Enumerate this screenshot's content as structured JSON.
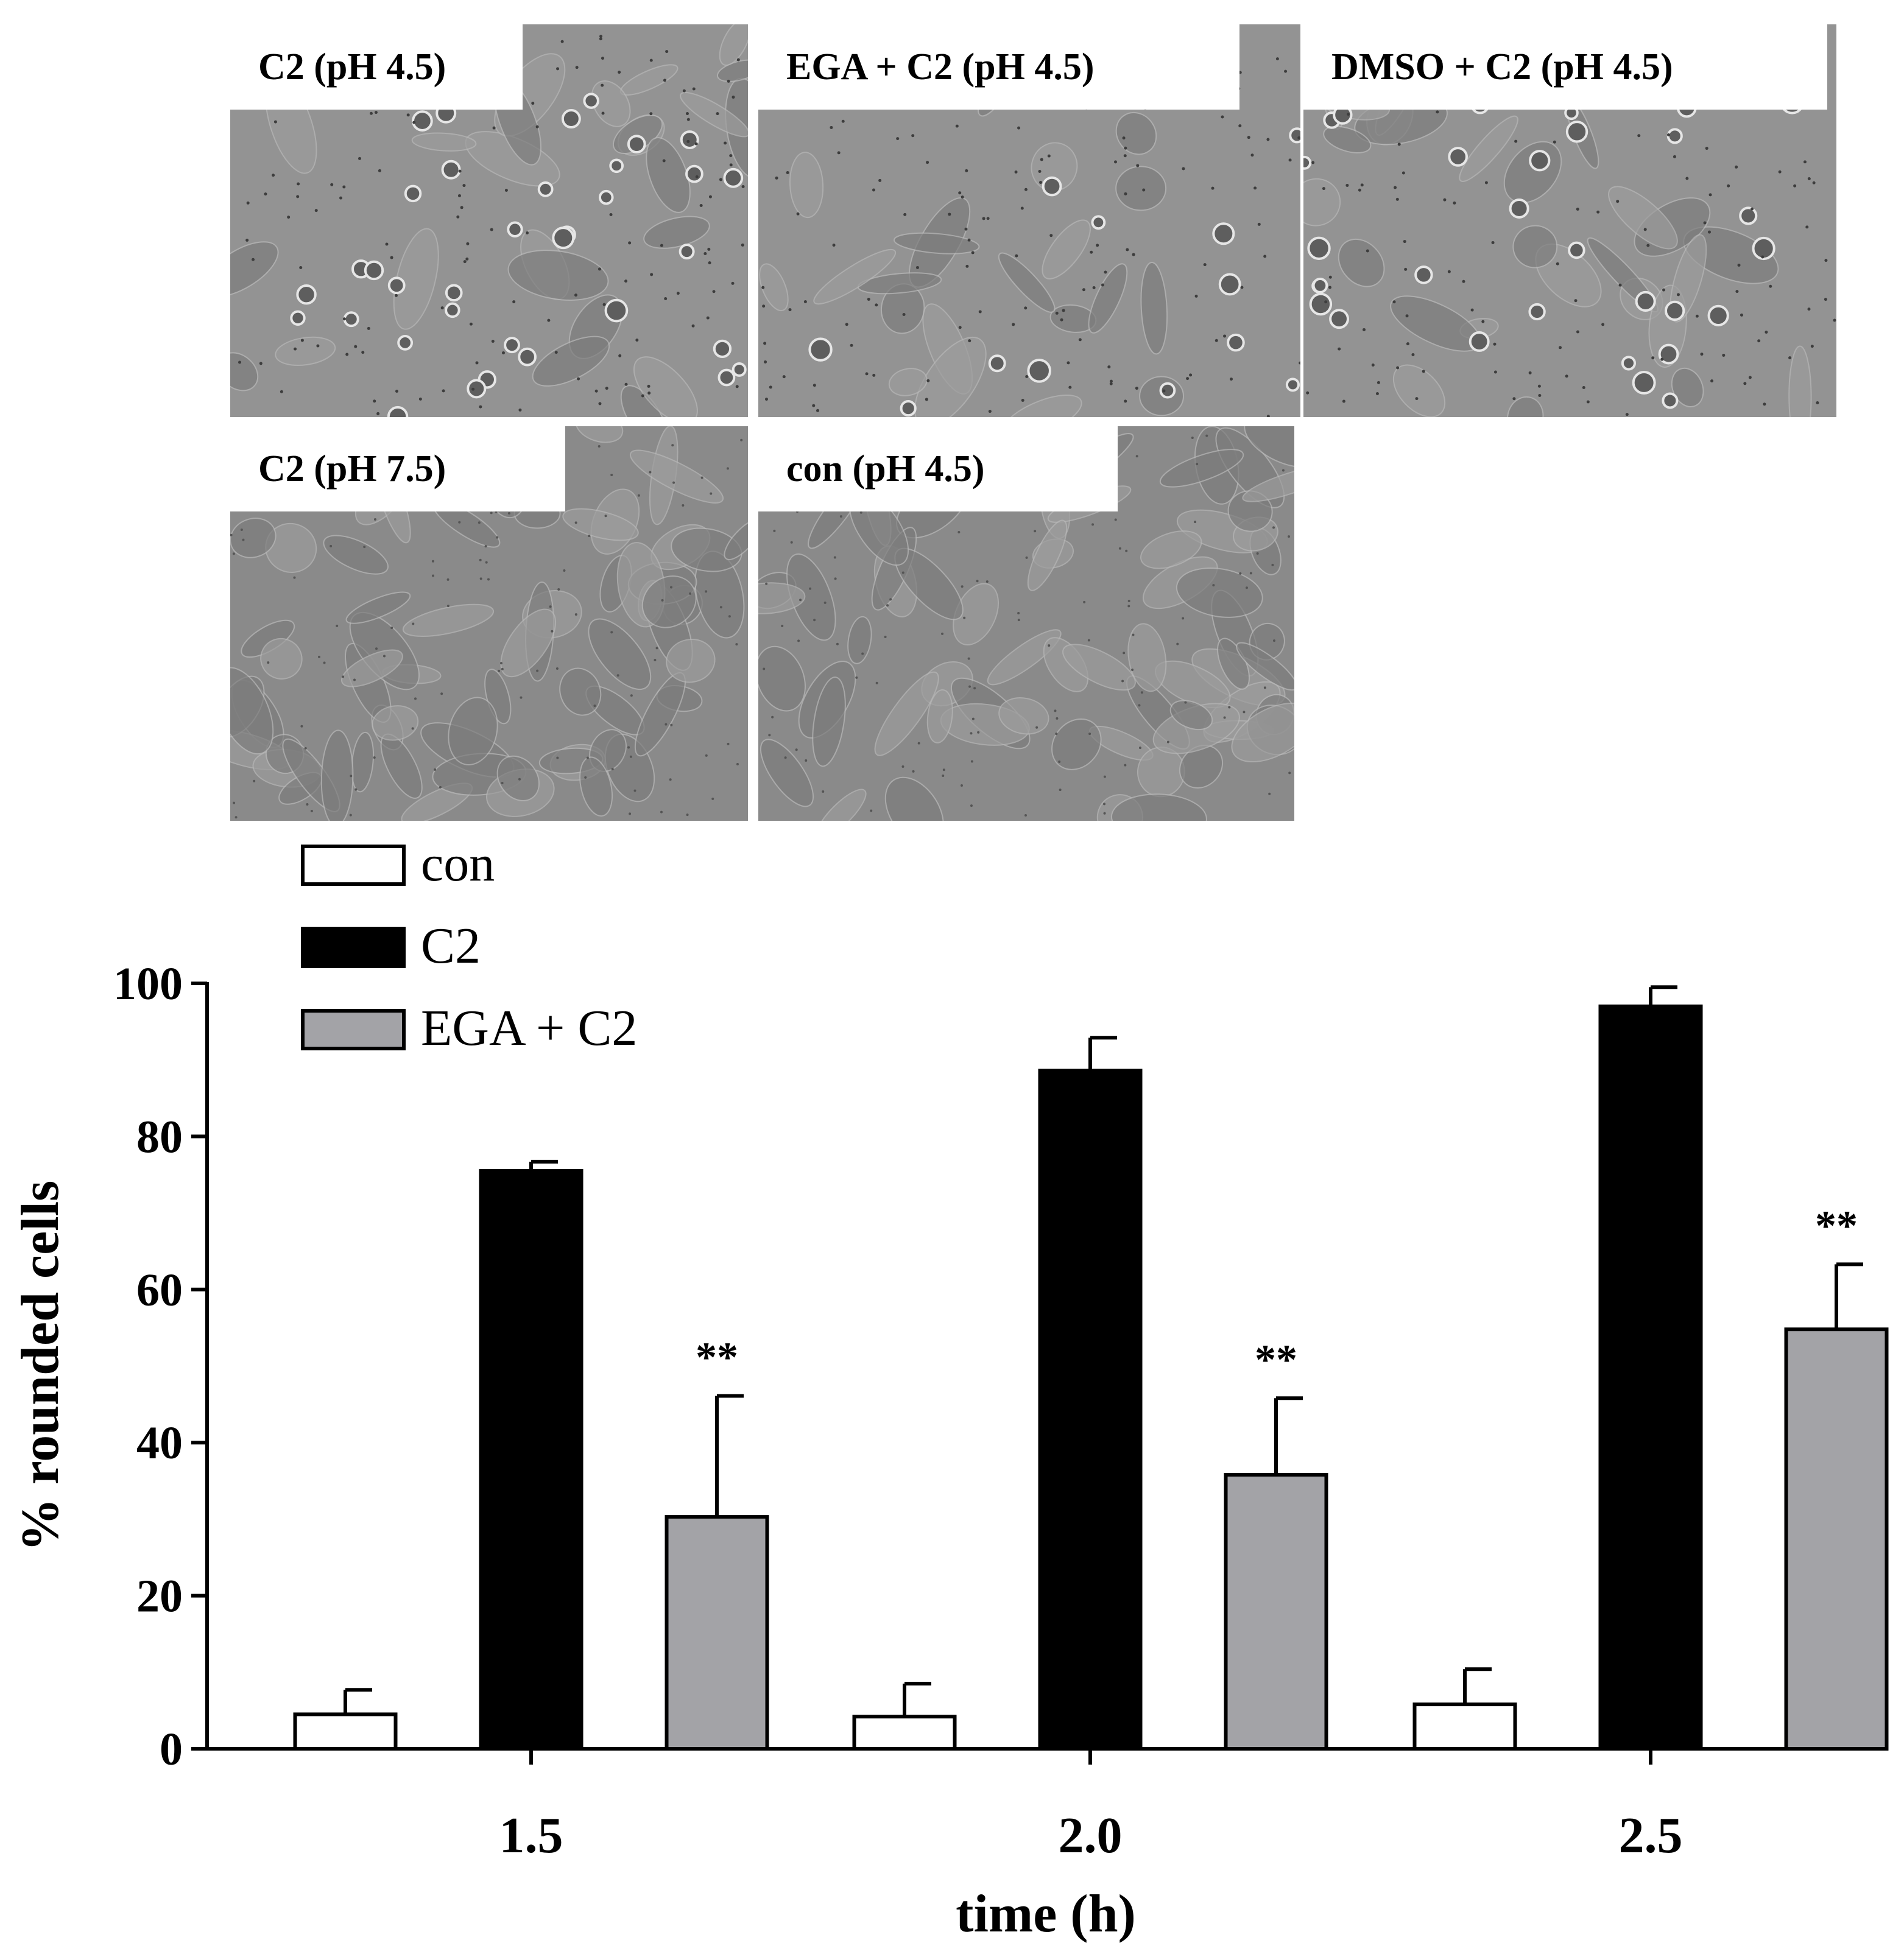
{
  "panels": [
    {
      "label": "C2 (pH 4.5)"
    },
    {
      "label": "EGA + C2 (pH 4.5)"
    },
    {
      "label": "DMSO + C2 (pH 4.5)"
    },
    {
      "label": "C2 (pH 7.5)"
    },
    {
      "label": "con (pH 4.5)"
    }
  ],
  "chart_data": {
    "type": "bar",
    "categories": [
      "1.5",
      "2.0",
      "2.5"
    ],
    "xlabel": "time (h)",
    "ylabel": "% rounded cells",
    "ylim": [
      0,
      100
    ],
    "yticks": [
      "0",
      "20",
      "40",
      "60",
      "80",
      "100"
    ],
    "legend_position": "top-left",
    "series": [
      {
        "name": "con",
        "color": "#ffffff",
        "values": [
          4.5,
          4.2,
          5.8
        ],
        "errors": [
          3.2,
          4.3,
          4.6
        ],
        "annotations": [
          "",
          "",
          ""
        ]
      },
      {
        "name": "C2",
        "color": "#000000",
        "values": [
          75.5,
          88.6,
          97.0
        ],
        "errors": [
          1.2,
          4.3,
          2.5
        ],
        "annotations": [
          "",
          "",
          ""
        ]
      },
      {
        "name": "EGA + C2",
        "color": "#a3a3a7",
        "values": [
          30.3,
          35.8,
          54.8
        ],
        "errors": [
          15.8,
          10.0,
          8.5
        ],
        "annotations": [
          "**",
          "**",
          "**"
        ]
      }
    ]
  }
}
